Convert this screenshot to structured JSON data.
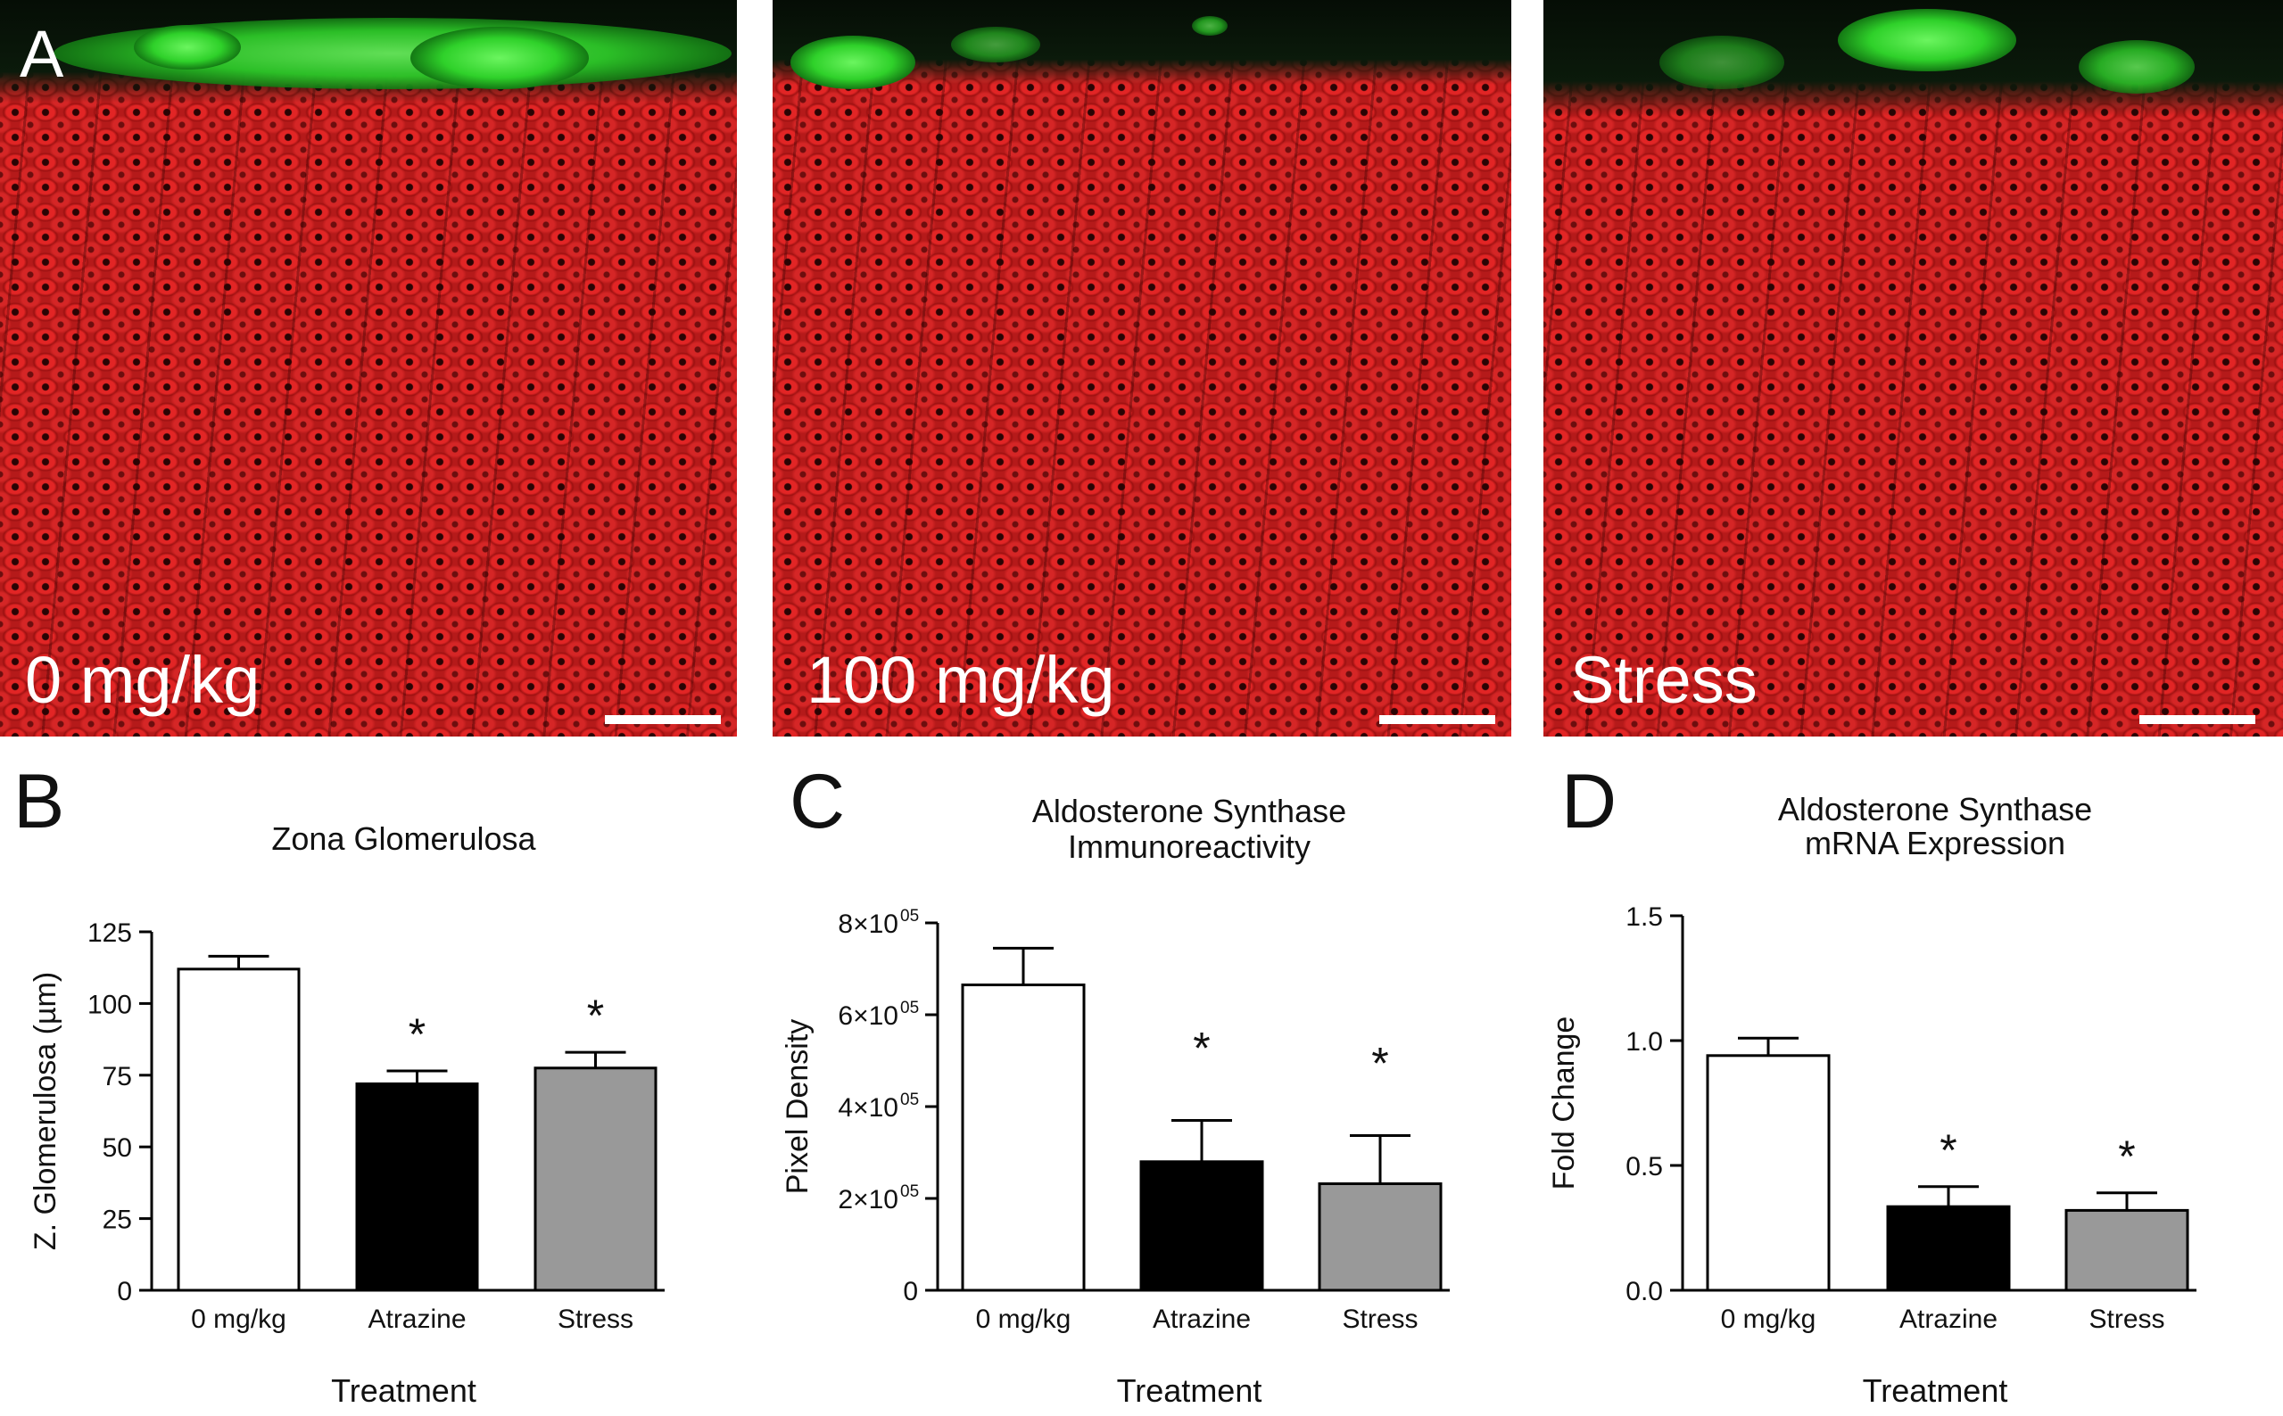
{
  "micrographs": {
    "panel_letter": "A",
    "labels": [
      "0 mg/kg",
      "100 mg/kg",
      "Stress"
    ]
  },
  "chart_data": [
    {
      "panel": "B",
      "type": "bar",
      "title": "Zona Glomerulosa",
      "title_lines": [
        "Zona Glomerulosa"
      ],
      "xlabel": "Treatment",
      "ylabel": "Z. Glomerulosa (µm)",
      "categories": [
        "0 mg/kg",
        "Atrazine",
        "Stress"
      ],
      "values": [
        112,
        72,
        77.5
      ],
      "errors": [
        4.5,
        4.5,
        5.5
      ],
      "significance": [
        "",
        "*",
        "*"
      ],
      "ylim": [
        0,
        125
      ],
      "yticks": [
        0,
        25,
        50,
        75,
        100,
        125
      ],
      "ytick_labels": [
        "0",
        "25",
        "50",
        "75",
        "100",
        "125"
      ],
      "colors": [
        "#ffffff",
        "#000000",
        "#999999"
      ]
    },
    {
      "panel": "C",
      "type": "bar",
      "title": "Aldosterone Synthase Immunoreactivity",
      "title_lines": [
        "Aldosterone Synthase",
        "Immunoreactivity"
      ],
      "xlabel": "Treatment",
      "ylabel": "Pixel Density",
      "categories": [
        "0 mg/kg",
        "Atrazine",
        "Stress"
      ],
      "values": [
        665000,
        280000,
        232000
      ],
      "errors": [
        80000,
        90000,
        105000
      ],
      "significance": [
        "",
        "*",
        "*"
      ],
      "ylim": [
        0,
        800000
      ],
      "yticks": [
        0,
        200000,
        400000,
        600000,
        800000
      ],
      "ytick_labels": [
        "0",
        "2×10",
        "4×10",
        "6×10",
        "8×10"
      ],
      "ytick_superscripts": [
        "",
        "05",
        "05",
        "05",
        "05"
      ],
      "colors": [
        "#ffffff",
        "#000000",
        "#999999"
      ]
    },
    {
      "panel": "D",
      "type": "bar",
      "title": "Aldosterone Synthase mRNA Expression",
      "title_lines": [
        "Aldosterone Synthase",
        "mRNA Expression"
      ],
      "xlabel": "Treatment",
      "ylabel": "Fold Change",
      "categories": [
        "0 mg/kg",
        "Atrazine",
        "Stress"
      ],
      "values": [
        0.94,
        0.335,
        0.32
      ],
      "errors": [
        0.07,
        0.08,
        0.07
      ],
      "significance": [
        "",
        "*",
        "*"
      ],
      "ylim": [
        0,
        1.5
      ],
      "yticks": [
        0,
        0.5,
        1.0,
        1.5
      ],
      "ytick_labels": [
        "0.0",
        "0.5",
        "1.0",
        "1.5"
      ],
      "colors": [
        "#ffffff",
        "#000000",
        "#999999"
      ]
    }
  ]
}
